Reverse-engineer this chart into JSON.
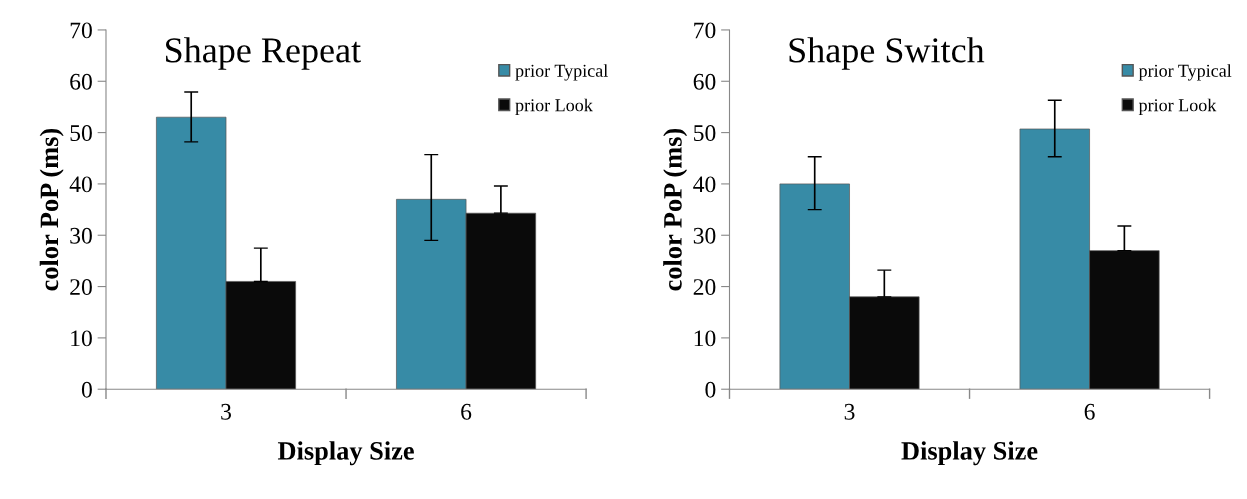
{
  "chart_data": [
    {
      "type": "bar",
      "title": "Shape Repeat",
      "xlabel": "Display Size",
      "ylabel": "color PoP (ms)",
      "categories": [
        "3",
        "6"
      ],
      "ylim": [
        0,
        70
      ],
      "yticks": [
        0,
        10,
        20,
        30,
        40,
        50,
        60,
        70
      ],
      "grid": false,
      "legend": "top right",
      "series": [
        {
          "name": "prior Typical",
          "color": "#378ba6",
          "values": [
            53,
            37
          ],
          "errors": [
            [
              48.2,
              57.9
            ],
            [
              29,
              45.7
            ]
          ]
        },
        {
          "name": "prior Look",
          "color": "#0a0a0a",
          "values": [
            21,
            34.3
          ],
          "errors": [
            [
              21,
              27.5
            ],
            [
              34.3,
              39.6
            ]
          ]
        }
      ]
    },
    {
      "type": "bar",
      "title": "Shape Switch",
      "xlabel": "Display Size",
      "ylabel": "color PoP (ms)",
      "categories": [
        "3",
        "6"
      ],
      "ylim": [
        0,
        70
      ],
      "yticks": [
        0,
        10,
        20,
        30,
        40,
        50,
        60,
        70
      ],
      "grid": false,
      "legend": "top right",
      "series": [
        {
          "name": "prior Typical",
          "color": "#378ba6",
          "values": [
            40,
            50.7
          ],
          "errors": [
            [
              35,
              45.3
            ],
            [
              45.3,
              56.3
            ]
          ]
        },
        {
          "name": "prior Look",
          "color": "#0a0a0a",
          "values": [
            18,
            27
          ],
          "errors": [
            [
              18,
              23.2
            ],
            [
              27,
              31.8
            ]
          ]
        }
      ]
    }
  ]
}
